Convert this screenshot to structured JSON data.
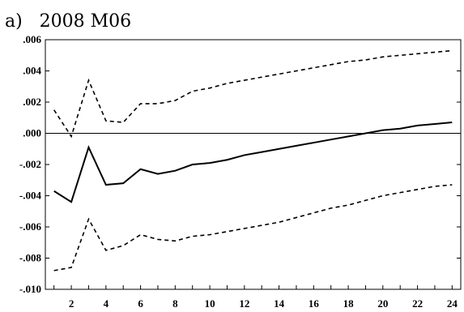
{
  "chart_data": {
    "type": "line",
    "title": "a)   2008 M06",
    "xlabel": "",
    "ylabel": "",
    "x": [
      1,
      2,
      3,
      4,
      5,
      6,
      7,
      8,
      9,
      10,
      11,
      12,
      13,
      14,
      15,
      16,
      17,
      18,
      19,
      20,
      21,
      22,
      23,
      24
    ],
    "xlim": [
      0.5,
      24.5
    ],
    "x_tick_labels": [
      "2",
      "4",
      "6",
      "8",
      "10",
      "12",
      "14",
      "16",
      "18",
      "20",
      "22",
      "24"
    ],
    "ylim": [
      -0.01,
      0.006
    ],
    "y_tick_labels": [
      ".006",
      ".004",
      ".002",
      ".000",
      "-.002",
      "-.004",
      "-.006",
      "-.008",
      "-.010"
    ],
    "y_tick_values": [
      0.006,
      0.004,
      0.002,
      0.0,
      -0.002,
      -0.004,
      -0.006,
      -0.008,
      -0.01
    ],
    "zero_line": true,
    "grid": false,
    "legend": "none",
    "series": [
      {
        "style": "solid",
        "color": "#000000",
        "values": [
          -0.0037,
          -0.0044,
          -0.0009,
          -0.0033,
          -0.0032,
          -0.0023,
          -0.0026,
          -0.0024,
          -0.002,
          -0.0019,
          -0.0017,
          -0.0014,
          -0.0012,
          -0.001,
          -0.0008,
          -0.0006,
          -0.0004,
          -0.0002,
          0.0,
          0.0002,
          0.0003,
          0.0005,
          0.0006,
          0.0007
        ]
      },
      {
        "style": "dashed",
        "color": "#000000",
        "values": [
          0.0015,
          -0.0002,
          0.0034,
          0.0008,
          0.0007,
          0.0019,
          0.0019,
          0.0021,
          0.0027,
          0.0029,
          0.0032,
          0.0034,
          0.0036,
          0.0038,
          0.004,
          0.0042,
          0.0044,
          0.0046,
          0.0047,
          0.0049,
          0.005,
          0.0051,
          0.0052,
          0.0053
        ]
      },
      {
        "style": "dashed",
        "color": "#000000",
        "values": [
          -0.0088,
          -0.0086,
          -0.0055,
          -0.0075,
          -0.0072,
          -0.0065,
          -0.0068,
          -0.0069,
          -0.0066,
          -0.0065,
          -0.0063,
          -0.0061,
          -0.0059,
          -0.0057,
          -0.0054,
          -0.0051,
          -0.0048,
          -0.0046,
          -0.0043,
          -0.004,
          -0.0038,
          -0.0036,
          -0.0034,
          -0.0033
        ]
      }
    ]
  }
}
